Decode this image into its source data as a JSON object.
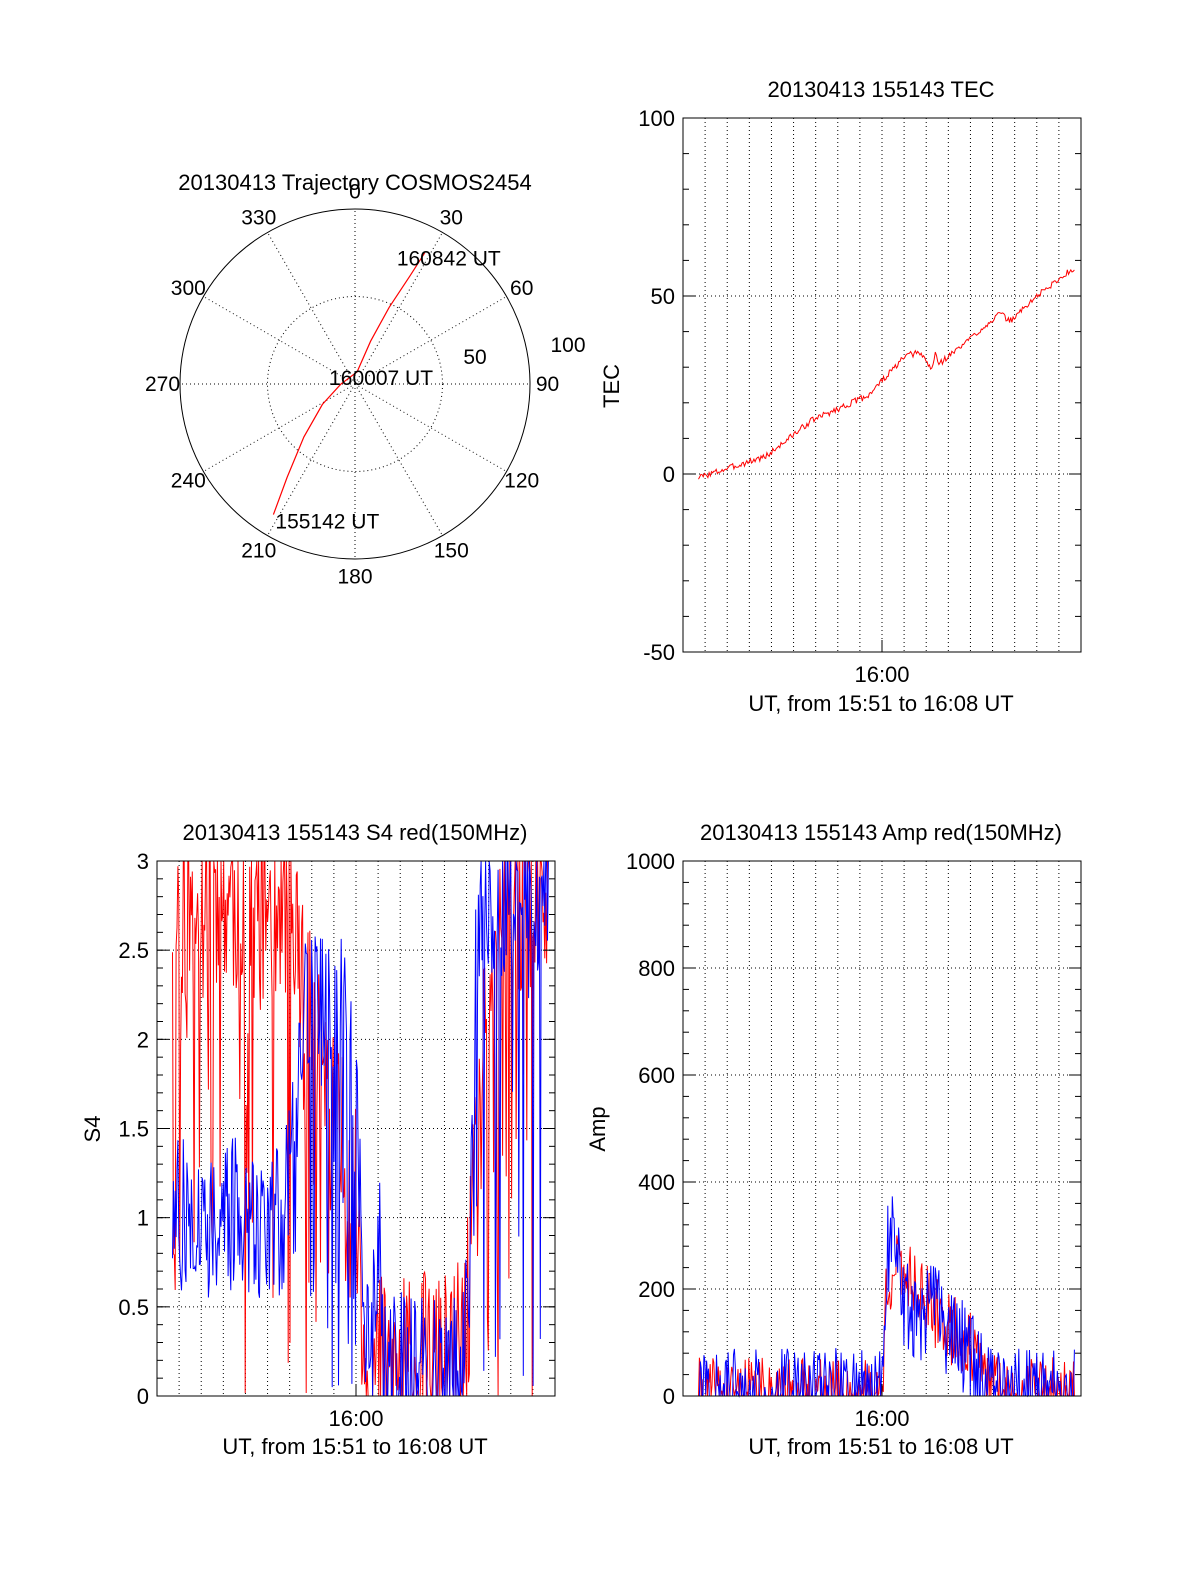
{
  "chart_data": [
    {
      "type": "polar-trajectory",
      "title": "20130413 Trajectory COSMOS2454",
      "angle_labels": [
        "0",
        "30",
        "60",
        "90",
        "120",
        "150",
        "180",
        "210",
        "240",
        "270",
        "300",
        "330"
      ],
      "radius_labels": [
        "50",
        "100"
      ],
      "radius_max": 100,
      "trajectory_color": "#ff0000",
      "trajectory": [
        {
          "az": 212,
          "r": 88,
          "label": "155142 UT"
        },
        {
          "az": 216,
          "r": 66
        },
        {
          "az": 224,
          "r": 42
        },
        {
          "az": 238,
          "r": 22
        },
        {
          "az": 270,
          "r": 8
        },
        {
          "az": 10,
          "r": 7,
          "label": "160007 UT"
        },
        {
          "az": 20,
          "r": 26
        },
        {
          "az": 24,
          "r": 48
        },
        {
          "az": 27,
          "r": 70
        },
        {
          "az": 28,
          "r": 85,
          "label": "160842 UT"
        }
      ]
    },
    {
      "type": "line",
      "title": "20130413 155143 TEC",
      "xlabel": "UT, from 15:51 to 16:08 UT",
      "ylabel": "TEC",
      "xlim": [
        15.85,
        16.15
      ],
      "ylim": [
        -50,
        100
      ],
      "yticks": [
        -50,
        0,
        50,
        100
      ],
      "xticks": [
        {
          "value": 16.0,
          "label": "16:00"
        }
      ],
      "grid": true,
      "series": [
        {
          "color": "#ff0000",
          "x_start": 15.8617,
          "x_end": 16.145,
          "n": 320,
          "baseline": [
            [
              0,
              -1
            ],
            [
              0.18,
              5
            ],
            [
              0.3,
              15
            ],
            [
              0.45,
              22
            ],
            [
              0.55,
              33
            ],
            [
              0.58,
              34
            ],
            [
              0.6,
              33
            ],
            [
              0.62,
              29
            ],
            [
              0.63,
              34
            ],
            [
              0.64,
              31
            ],
            [
              0.7,
              36
            ],
            [
              0.8,
              45
            ],
            [
              0.83,
              43
            ],
            [
              0.9,
              50
            ],
            [
              1,
              58
            ]
          ],
          "noise": 0.9,
          "seed": 3
        }
      ]
    },
    {
      "type": "line",
      "title": "20130413 155143 S4 red(150MHz)",
      "xlabel": "UT, from 15:51 to 16:08 UT",
      "ylabel": "S4",
      "xlim": [
        15.85,
        16.15
      ],
      "ylim": [
        0,
        3
      ],
      "yticks": [
        0,
        0.5,
        1,
        1.5,
        2,
        2.5,
        3
      ],
      "ytick_labels": [
        "0",
        "0.5",
        "1",
        "1.5",
        "2",
        "2.5",
        "3"
      ],
      "xticks": [
        {
          "value": 16.0,
          "label": "16:00"
        }
      ],
      "grid": true,
      "series": [
        {
          "color": "#ff0000",
          "x_start": 15.8617,
          "x_end": 16.145,
          "n": 420,
          "baseline": [
            [
              0,
              2.8
            ],
            [
              0.3,
              2.8
            ],
            [
              0.42,
              1.6
            ],
            [
              0.5,
              0.9
            ],
            [
              0.51,
              0.2
            ],
            [
              0.52,
              0.12
            ],
            [
              0.75,
              0.1
            ],
            [
              0.78,
              0.3
            ],
            [
              0.82,
              1.6
            ],
            [
              0.86,
              2.8
            ],
            [
              1,
              2.8
            ]
          ],
          "noise": 0.6,
          "seed": 11
        },
        {
          "color": "#0000ff",
          "x_start": 15.8617,
          "x_end": 16.145,
          "n": 420,
          "baseline": [
            [
              0,
              1.0
            ],
            [
              0.3,
              1.0
            ],
            [
              0.34,
              2.2
            ],
            [
              0.46,
              2.2
            ],
            [
              0.5,
              1.2
            ],
            [
              0.51,
              0.2
            ],
            [
              0.53,
              0.25
            ],
            [
              0.55,
              0.9
            ],
            [
              0.56,
              0.15
            ],
            [
              0.76,
              0.12
            ],
            [
              0.79,
              0.6
            ],
            [
              0.81,
              2.8
            ],
            [
              1,
              2.8
            ]
          ],
          "noise": 0.45,
          "seed": 27
        }
      ]
    },
    {
      "type": "line",
      "title": "20130413 155143 Amp red(150MHz)",
      "xlabel": "UT, from 15:51 to 16:08 UT",
      "ylabel": "Amp",
      "xlim": [
        15.85,
        16.15
      ],
      "ylim": [
        0,
        1000
      ],
      "yticks": [
        0,
        200,
        400,
        600,
        800,
        1000
      ],
      "xticks": [
        {
          "value": 16.0,
          "label": "16:00"
        }
      ],
      "grid": true,
      "series": [
        {
          "color": "#ff0000",
          "x_start": 15.8617,
          "x_end": 16.145,
          "n": 420,
          "baseline": [
            [
              0,
              2
            ],
            [
              0.49,
              2
            ],
            [
              0.5,
              220
            ],
            [
              0.54,
              240
            ],
            [
              0.58,
              210
            ],
            [
              0.62,
              160
            ],
            [
              0.68,
              120
            ],
            [
              0.72,
              90
            ],
            [
              0.76,
              40
            ],
            [
              0.8,
              5
            ],
            [
              1,
              2
            ]
          ],
          "noise": 70,
          "seed": 41
        },
        {
          "color": "#0000ff",
          "x_start": 15.8617,
          "x_end": 16.145,
          "n": 420,
          "baseline": [
            [
              0,
              2
            ],
            [
              0.49,
              2
            ],
            [
              0.5,
              260
            ],
            [
              0.52,
              340
            ],
            [
              0.54,
              180
            ],
            [
              0.58,
              150
            ],
            [
              0.62,
              170
            ],
            [
              0.68,
              110
            ],
            [
              0.72,
              80
            ],
            [
              0.76,
              20
            ],
            [
              0.78,
              3
            ],
            [
              1,
              2
            ]
          ],
          "noise": 90,
          "seed": 57
        }
      ]
    }
  ]
}
